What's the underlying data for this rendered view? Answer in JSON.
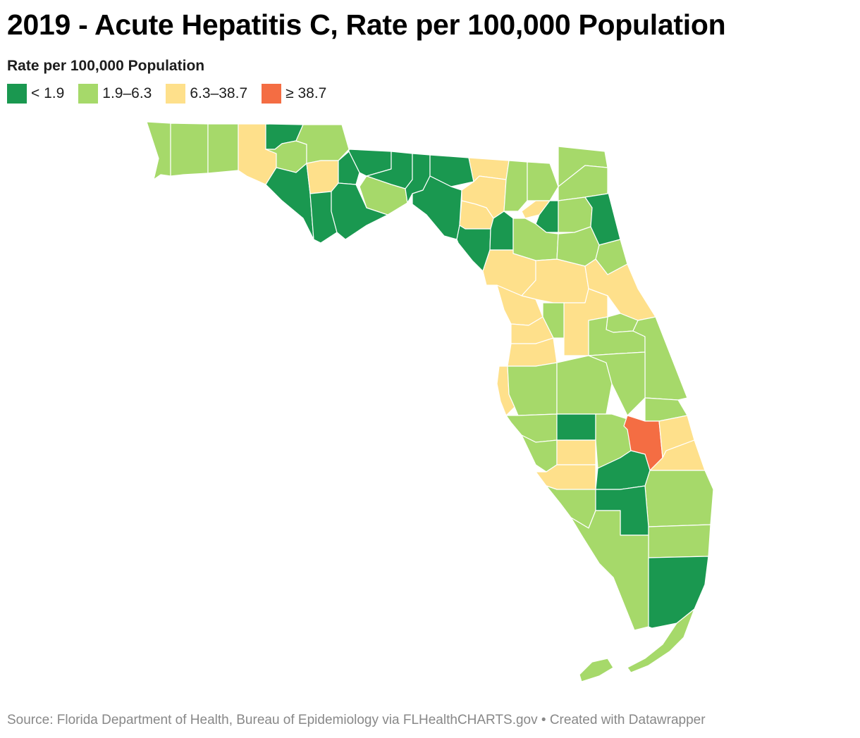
{
  "title": "2019 - Acute Hepatitis C, Rate per 100,000 Population",
  "legend": {
    "title": "Rate per 100,000 Population",
    "items": [
      {
        "label": "< 1.9",
        "color": "#1a9850"
      },
      {
        "label": "1.9–6.3",
        "color": "#a6d96a"
      },
      {
        "label": "6.3–38.7",
        "color": "#fee08b"
      },
      {
        "label": "≥ 38.7",
        "color": "#f46d43"
      }
    ]
  },
  "colors": {
    "dark_green": "#1a9850",
    "light_green": "#a6d96a",
    "yellow": "#fee08b",
    "orange": "#f46d43",
    "border": "#ffffff"
  },
  "source": "Source: Florida Department of Health, Bureau of Epidemiology via FLHealthCHARTS.gov • Created with Datawrapper"
}
